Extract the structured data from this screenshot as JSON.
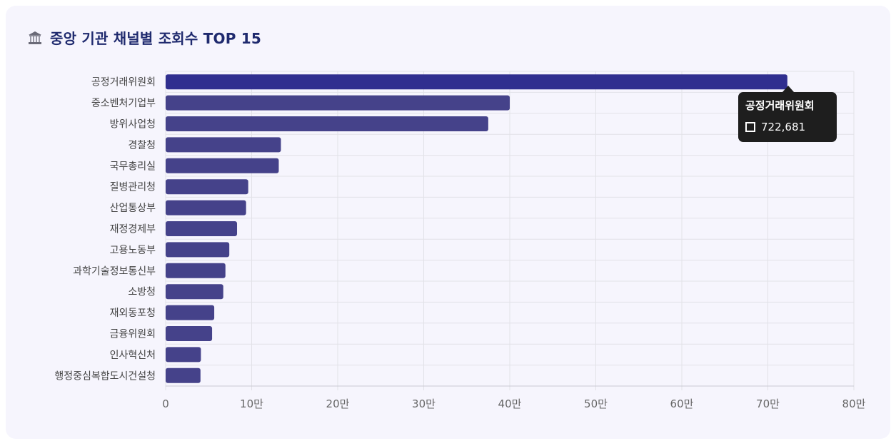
{
  "header": {
    "icon": "government-building-icon",
    "title": "중앙 기관 채널별 조회수 TOP 15"
  },
  "colors": {
    "bar": "#45428a",
    "bar_highlight": "#302f8f",
    "title": "#1f2a6e",
    "grid": "#e2e2e8",
    "tick_text": "#666666",
    "tooltip_bg": "#1e1e1e"
  },
  "chart_data": {
    "type": "bar",
    "orientation": "horizontal",
    "title": "중앙 기관 채널별 조회수 TOP 15",
    "categories": [
      "공정거래위원회",
      "중소벤처기업부",
      "방위사업청",
      "경찰청",
      "국무총리실",
      "질병관리청",
      "산업통상부",
      "재정경제부",
      "고용노동부",
      "과학기술정보통신부",
      "소방청",
      "재외동포청",
      "금융위원회",
      "인사혁신처",
      "행정중심복합도시건설청"
    ],
    "values": [
      722681,
      400000,
      375000,
      134000,
      131500,
      96000,
      93500,
      83000,
      74000,
      69500,
      67000,
      56500,
      54000,
      41000,
      40500
    ],
    "xlim": [
      0,
      800000
    ],
    "xticks": [
      0,
      100000,
      200000,
      300000,
      400000,
      500000,
      600000,
      700000,
      800000
    ],
    "xtick_labels": [
      "0",
      "10만",
      "20만",
      "30만",
      "40만",
      "50만",
      "60만",
      "70만",
      "80만"
    ],
    "xlabel": "",
    "ylabel": "",
    "grid": true,
    "highlighted_index": 0
  },
  "tooltip": {
    "title": "공정거래위원회",
    "value": "722,681"
  }
}
